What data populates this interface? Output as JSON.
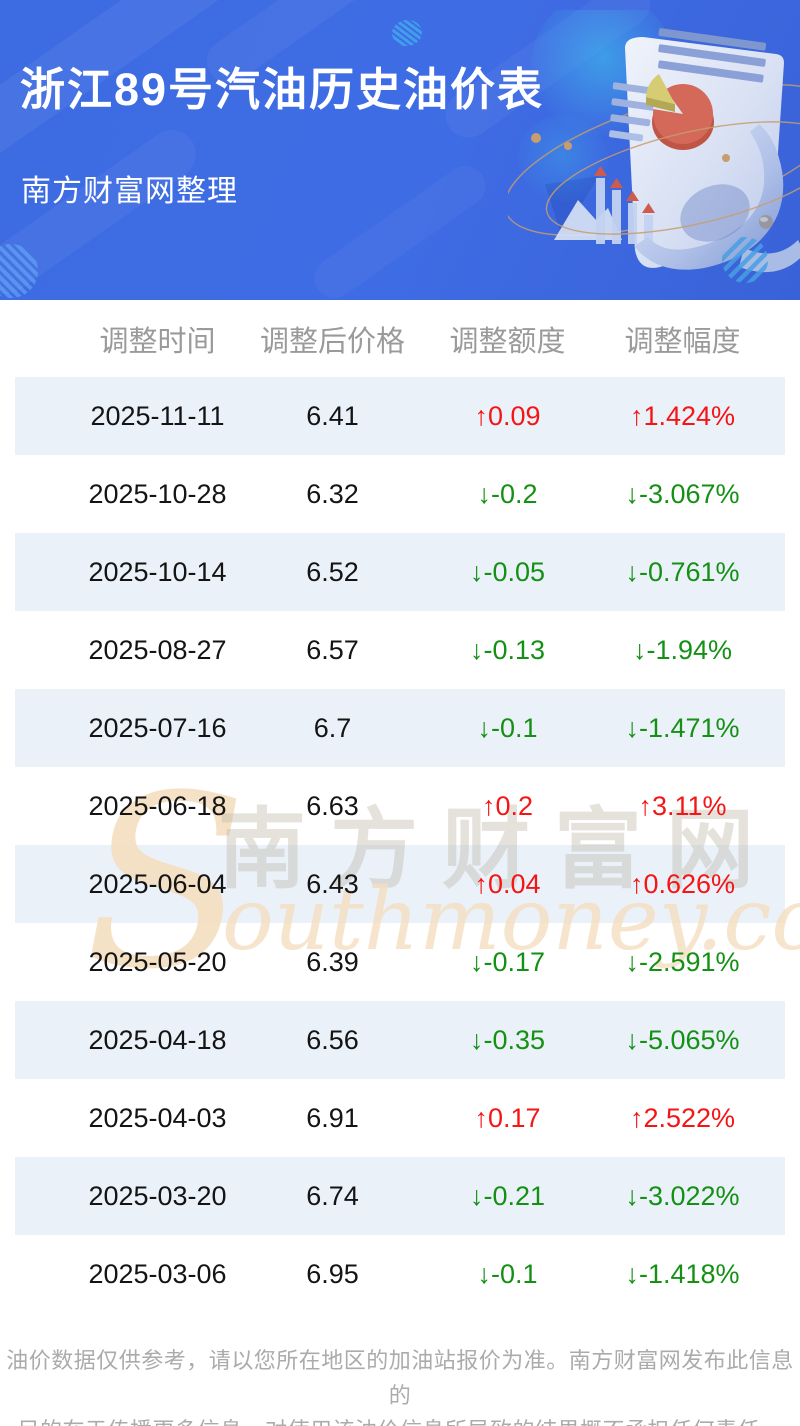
{
  "header": {
    "title": "浙江89号汽油历史油价表",
    "subtitle": "南方财富网整理"
  },
  "colors": {
    "header-bg": "#3D6BE2",
    "up": "#F51515",
    "down": "#149014",
    "row-alt": "#EAF1F9",
    "header-text": "#9A9A9A",
    "cell-text": "#141414",
    "footer-text": "#ABABAB",
    "watermark-tan": "#F5DFC0",
    "watermark-gray": "#BDB4A6"
  },
  "chart_data": {
    "type": "table",
    "title": "浙江89号汽油历史油价表",
    "columns": [
      "调整时间",
      "调整后价格",
      "调整额度",
      "调整幅度"
    ],
    "rows": [
      [
        "2025-11-11",
        "6.41",
        "↑0.09",
        "↑1.424%"
      ],
      [
        "2025-10-28",
        "6.32",
        "↓-0.2",
        "↓-3.067%"
      ],
      [
        "2025-10-14",
        "6.52",
        "↓-0.05",
        "↓-0.761%"
      ],
      [
        "2025-08-27",
        "6.57",
        "↓-0.13",
        "↓-1.94%"
      ],
      [
        "2025-07-16",
        "6.7",
        "↓-0.1",
        "↓-1.471%"
      ],
      [
        "2025-06-18",
        "6.63",
        "↑0.2",
        "↑3.11%"
      ],
      [
        "2025-06-04",
        "6.43",
        "↑0.04",
        "↑0.626%"
      ],
      [
        "2025-05-20",
        "6.39",
        "↓-0.17",
        "↓-2.591%"
      ],
      [
        "2025-04-18",
        "6.56",
        "↓-0.35",
        "↓-5.065%"
      ],
      [
        "2025-04-03",
        "6.91",
        "↑0.17",
        "↑2.522%"
      ],
      [
        "2025-03-20",
        "6.74",
        "↓-0.21",
        "↓-3.022%"
      ],
      [
        "2025-03-06",
        "6.95",
        "↓-0.1",
        "↓-1.418%"
      ]
    ]
  },
  "watermark": {
    "initial": "S",
    "cn": "南方财富网",
    "en": "outhmoney.com"
  },
  "footer": {
    "lines": [
      "油价数据仅供参考，请以您所在地区的加油站报价为准。南方财富网发布此信息的",
      "目的在于传播更多信息，对使用该油价信息所导致的结果概不承担任何责任。"
    ]
  }
}
